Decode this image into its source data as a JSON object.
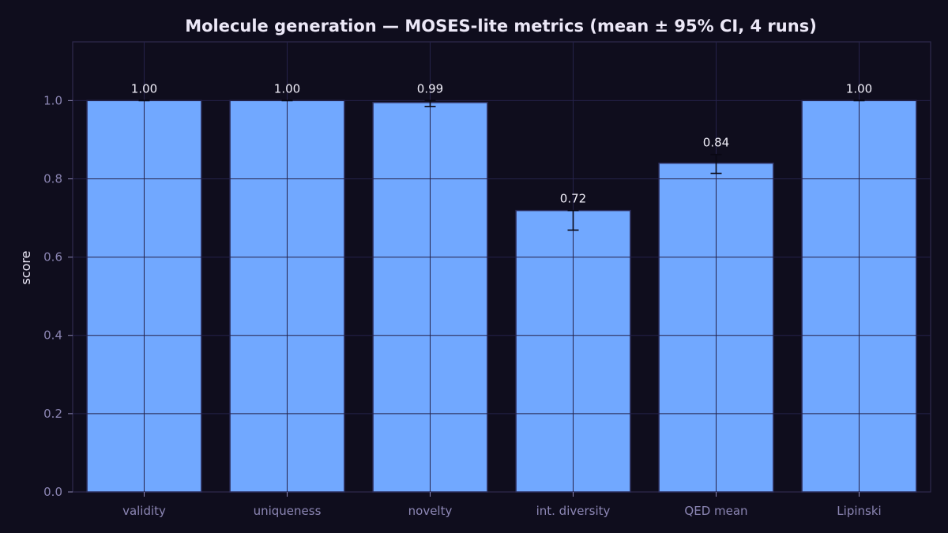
{
  "colors": {
    "background": "#0f0d1d",
    "plot_border": "#2f2b4d",
    "grid": "#25224a",
    "bar_fill": "#71a8ff",
    "bar_edge": "#2c2d5b",
    "error_bar": "#0a0814",
    "title": "#ece8f7",
    "tick_label": "#8c86b4",
    "value_label": "#f2f0fa"
  },
  "chart_data": {
    "type": "bar",
    "title": "Molecule generation — MOSES-lite metrics (mean ± 95% CI, 4 runs)",
    "xlabel": "",
    "ylabel": "score",
    "ylim": [
      0,
      1.15
    ],
    "yticks": [
      0.0,
      0.2,
      0.4,
      0.6,
      0.8,
      1.0
    ],
    "ytick_labels": [
      "0.0",
      "0.2",
      "0.4",
      "0.6",
      "0.8",
      "1.0"
    ],
    "grid": true,
    "categories": [
      "validity",
      "uniqueness",
      "novelty",
      "int. diversity",
      "QED mean",
      "Lipinski"
    ],
    "values": [
      1.0,
      1.0,
      0.995,
      0.719,
      0.84,
      1.0
    ],
    "error_low": [
      1.0,
      1.0,
      0.985,
      0.669,
      0.814,
      1.0
    ],
    "error_high": [
      1.0,
      1.0,
      1.0,
      0.719,
      0.862,
      1.0
    ],
    "value_labels": [
      "1.00",
      "1.00",
      "0.99",
      "0.72",
      "0.84",
      "1.00"
    ]
  }
}
